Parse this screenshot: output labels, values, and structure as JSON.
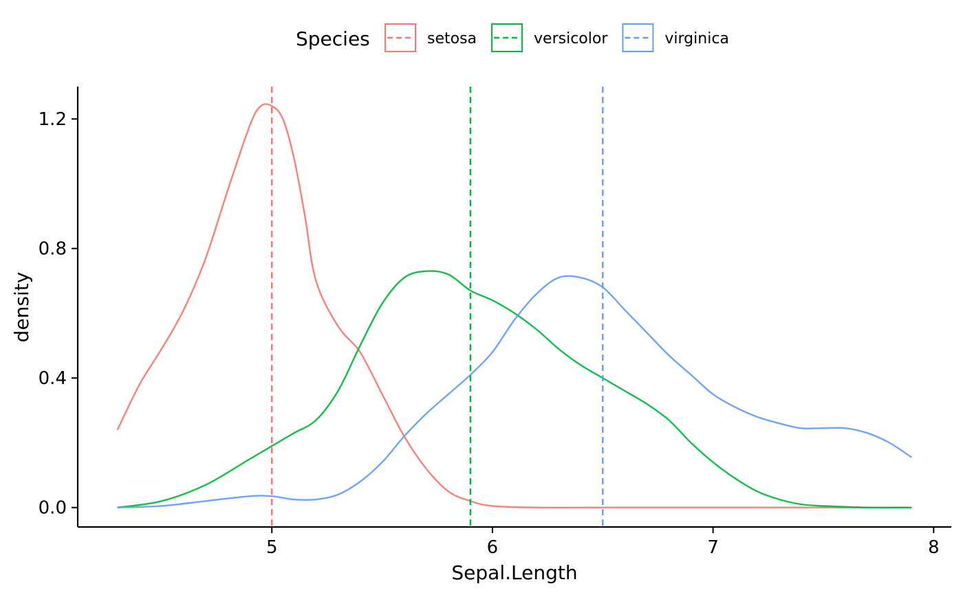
{
  "chart_data": {
    "type": "line",
    "title": "",
    "xlabel": "Sepal.Length",
    "ylabel": "density",
    "xlim": [
      4.12,
      8.08
    ],
    "ylim": [
      -0.06,
      1.3
    ],
    "x_ticks": [
      5,
      6,
      7,
      8
    ],
    "x_tick_labels": [
      "5",
      "6",
      "7",
      "8"
    ],
    "y_ticks": [
      0,
      0.4,
      0.8,
      1.2
    ],
    "y_tick_labels": [
      "0.0",
      "0.4",
      "0.8",
      "1.2"
    ],
    "grid": false,
    "legend": {
      "title": "Species",
      "position": "top"
    },
    "series": [
      {
        "name": "setosa",
        "color": "#F8766D",
        "mean": 5.0,
        "x": [
          4.3,
          4.4,
          4.5,
          4.6,
          4.7,
          4.8,
          4.9,
          4.95,
          5.0,
          5.05,
          5.1,
          5.15,
          5.2,
          5.3,
          5.4,
          5.5,
          5.6,
          5.7,
          5.8,
          5.9,
          6.0,
          6.2,
          6.5,
          7.0,
          7.5,
          7.9
        ],
        "y": [
          0.24,
          0.38,
          0.49,
          0.61,
          0.77,
          0.98,
          1.18,
          1.24,
          1.24,
          1.2,
          1.08,
          0.9,
          0.7,
          0.56,
          0.48,
          0.35,
          0.22,
          0.12,
          0.05,
          0.02,
          0.005,
          0.0,
          0.0,
          0.0,
          0.0,
          0.0
        ]
      },
      {
        "name": "versicolor",
        "color": "#00BA38",
        "mean": 5.9,
        "x": [
          4.3,
          4.5,
          4.7,
          4.9,
          5.0,
          5.1,
          5.2,
          5.3,
          5.4,
          5.5,
          5.6,
          5.7,
          5.8,
          5.9,
          6.0,
          6.1,
          6.2,
          6.3,
          6.4,
          6.5,
          6.6,
          6.7,
          6.8,
          6.9,
          7.0,
          7.1,
          7.2,
          7.3,
          7.4,
          7.5,
          7.7,
          7.9
        ],
        "y": [
          0.0,
          0.02,
          0.07,
          0.15,
          0.19,
          0.23,
          0.27,
          0.36,
          0.5,
          0.63,
          0.71,
          0.73,
          0.72,
          0.67,
          0.64,
          0.6,
          0.55,
          0.49,
          0.44,
          0.4,
          0.36,
          0.32,
          0.27,
          0.2,
          0.14,
          0.09,
          0.05,
          0.025,
          0.01,
          0.005,
          0.0,
          0.0
        ]
      },
      {
        "name": "virginica",
        "color": "#619CFF",
        "mean": 6.5,
        "x": [
          4.3,
          4.5,
          4.7,
          4.9,
          5.0,
          5.1,
          5.2,
          5.3,
          5.4,
          5.5,
          5.6,
          5.7,
          5.8,
          5.9,
          6.0,
          6.1,
          6.2,
          6.3,
          6.4,
          6.5,
          6.6,
          6.7,
          6.8,
          6.9,
          7.0,
          7.1,
          7.2,
          7.3,
          7.4,
          7.5,
          7.6,
          7.7,
          7.8,
          7.9
        ],
        "y": [
          0.0,
          0.005,
          0.02,
          0.035,
          0.035,
          0.025,
          0.025,
          0.04,
          0.08,
          0.14,
          0.22,
          0.29,
          0.35,
          0.41,
          0.48,
          0.58,
          0.66,
          0.71,
          0.71,
          0.68,
          0.61,
          0.54,
          0.47,
          0.41,
          0.35,
          0.31,
          0.28,
          0.26,
          0.245,
          0.245,
          0.245,
          0.23,
          0.2,
          0.155
        ]
      }
    ]
  }
}
